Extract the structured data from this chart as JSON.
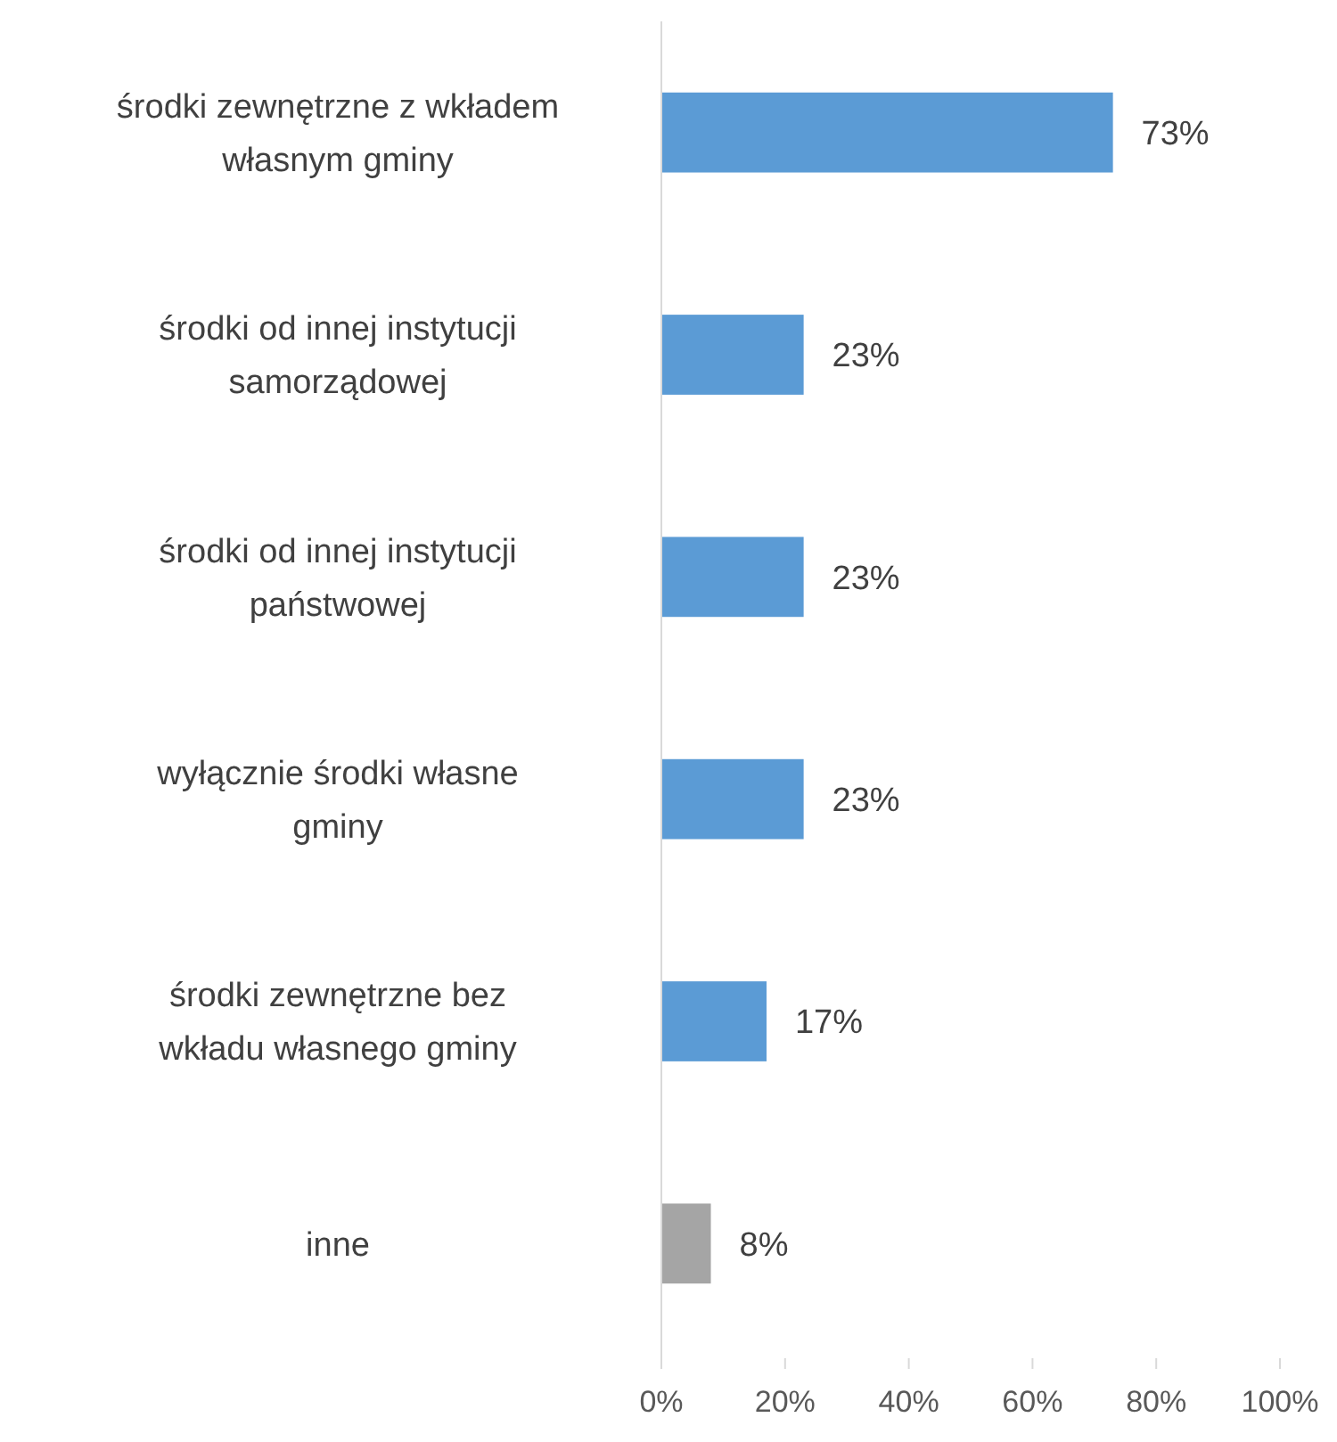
{
  "chart_data": {
    "type": "bar",
    "orientation": "horizontal",
    "categories": [
      "środki zewnętrzne z wkładem własnym gminy",
      "środki od innej instytucji samorządowej",
      "środki od innej instytucji państwowej",
      "wyłącznie środki własne gminy",
      "środki zewnętrzne bez wkładu własnego gminy",
      "inne"
    ],
    "values": [
      73,
      23,
      23,
      23,
      17,
      8
    ],
    "value_labels": [
      "73%",
      "23%",
      "23%",
      "23%",
      "17%",
      "8%"
    ],
    "colors": [
      "#5b9bd5",
      "#5b9bd5",
      "#5b9bd5",
      "#5b9bd5",
      "#5b9bd5",
      "#a5a5a5"
    ],
    "xlim": [
      0,
      100
    ],
    "xticks": [
      {
        "value": 0,
        "label": "0%"
      },
      {
        "value": 20,
        "label": "20%"
      },
      {
        "value": 40,
        "label": "40%"
      },
      {
        "value": 60,
        "label": "60%"
      },
      {
        "value": 80,
        "label": "80%"
      },
      {
        "value": 100,
        "label": "100%"
      }
    ],
    "grid": false
  }
}
